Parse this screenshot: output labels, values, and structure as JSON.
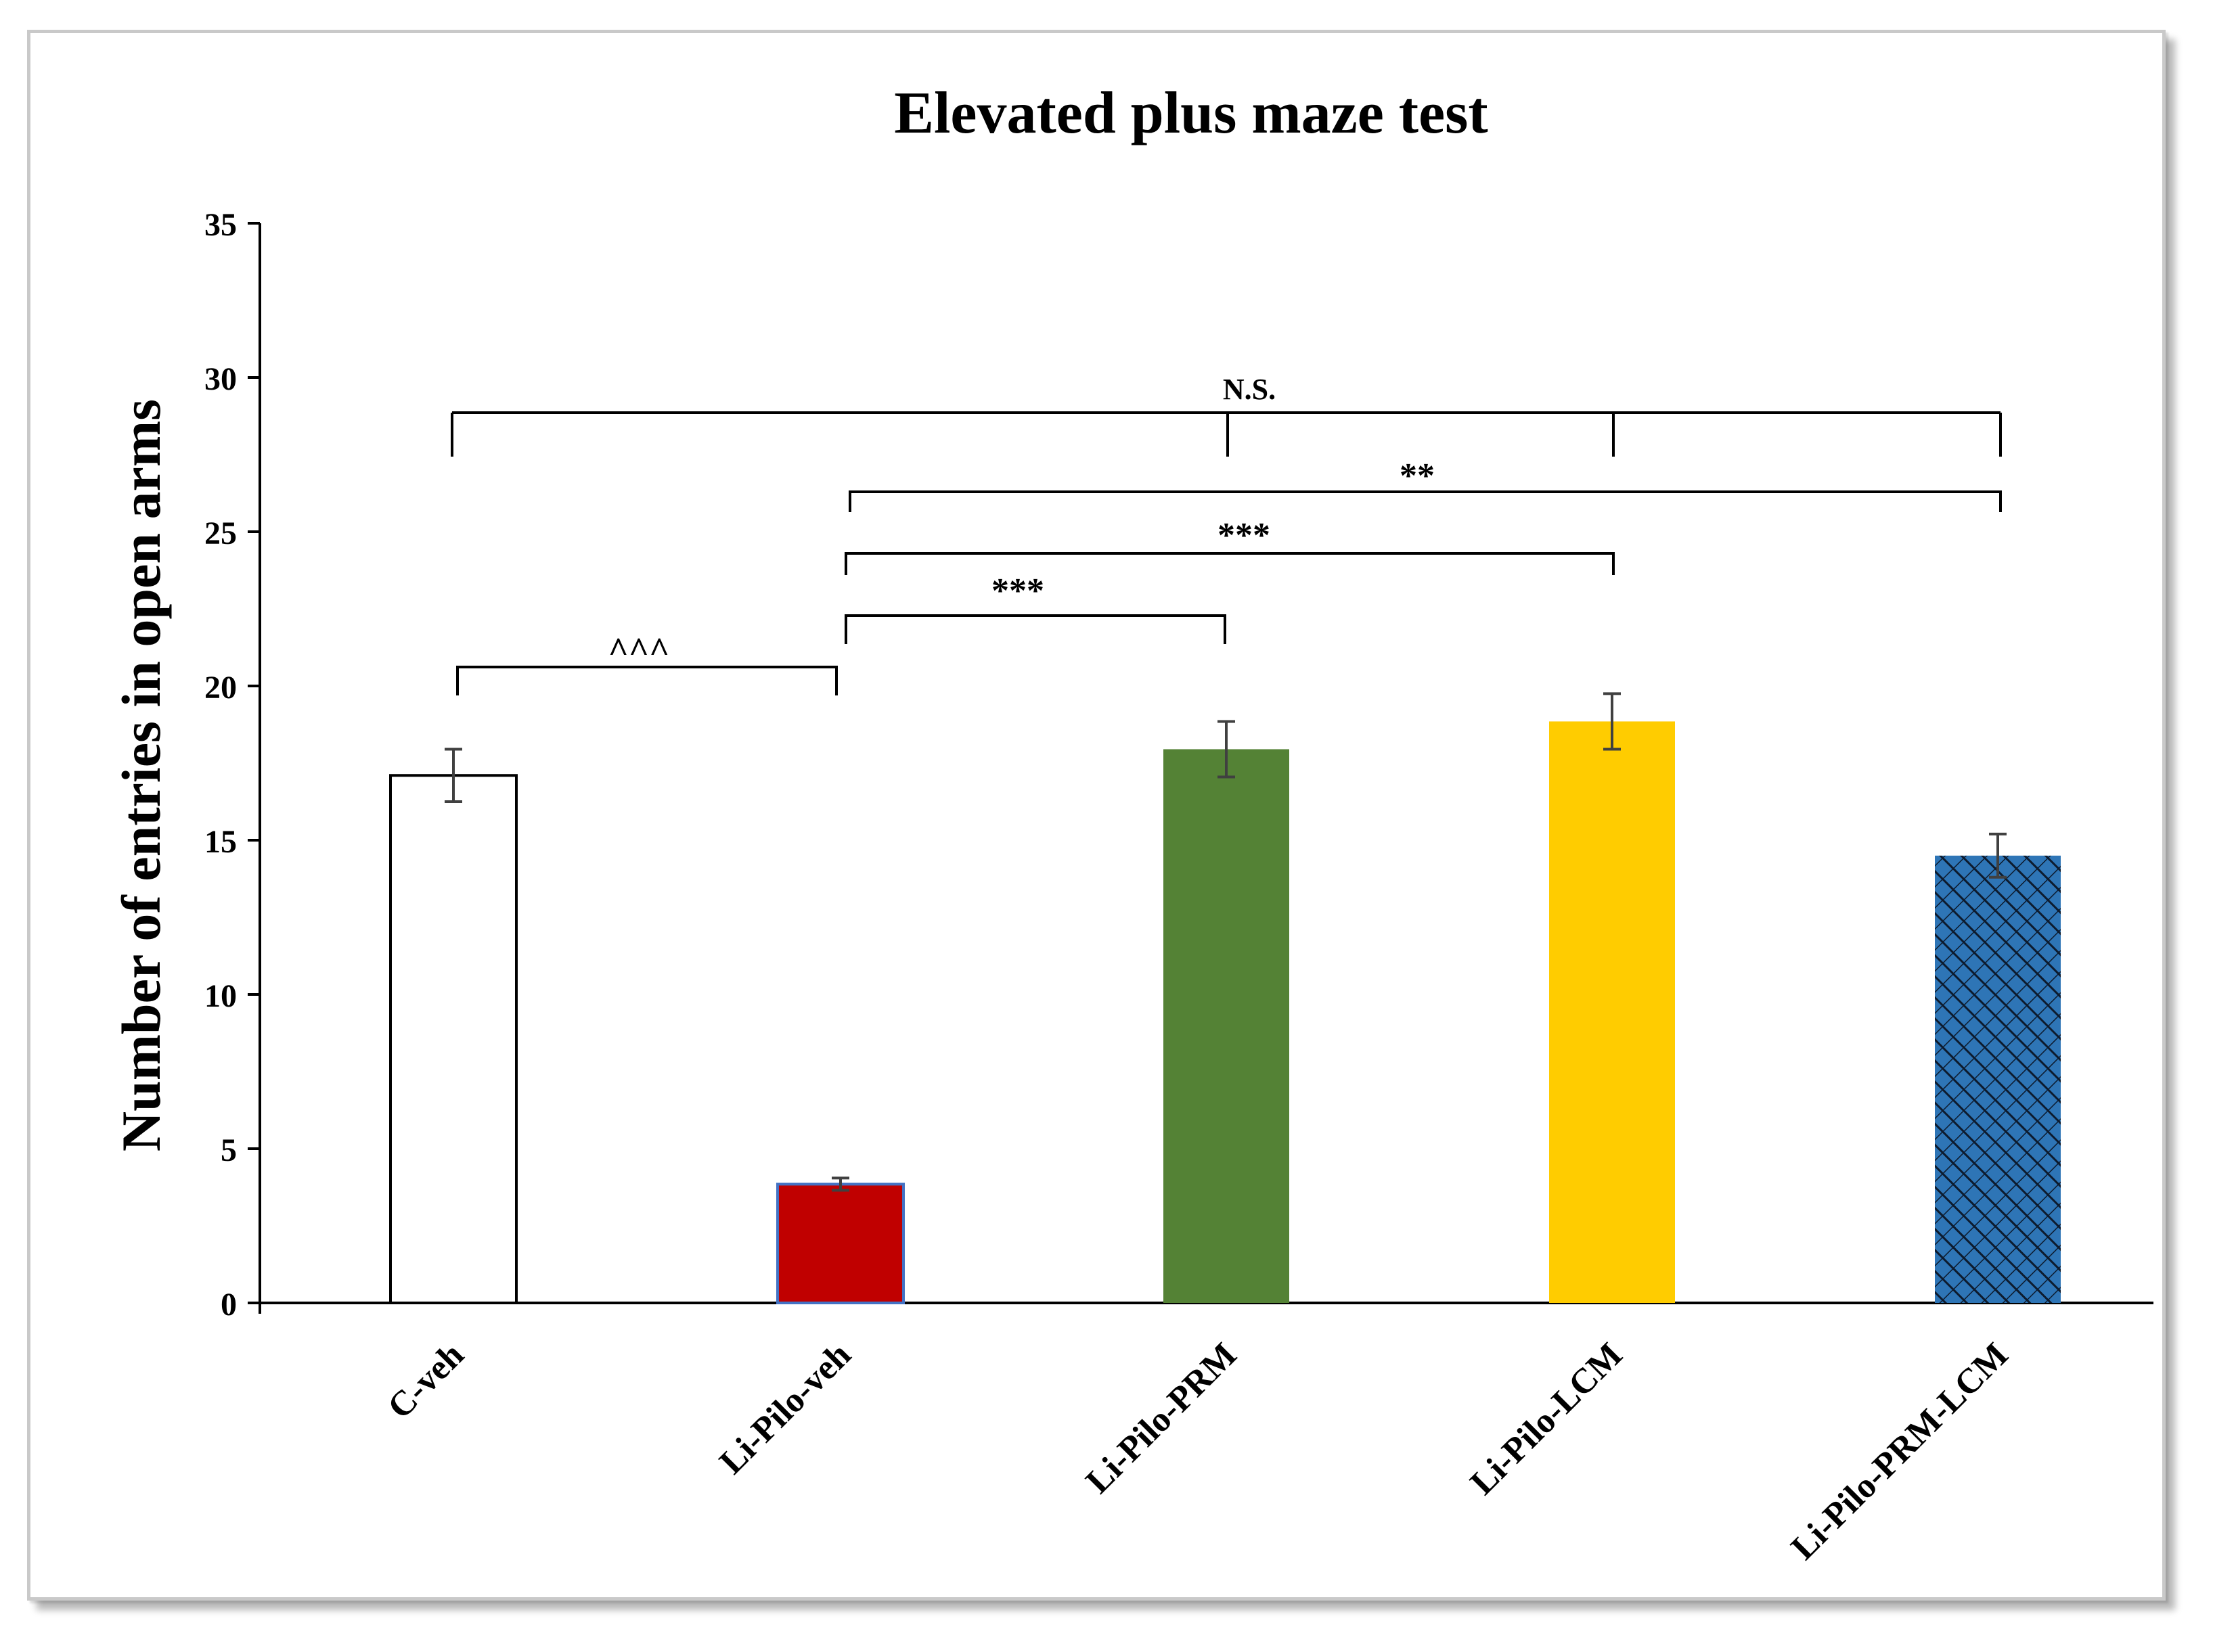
{
  "chart_data": {
    "type": "bar",
    "title": "Elevated plus maze test",
    "xlabel": "",
    "ylabel": "Number of entries in open arms",
    "ylim": [
      0,
      35
    ],
    "yticks": [
      0,
      5,
      10,
      15,
      20,
      25,
      30,
      35
    ],
    "categories": [
      "C-veh",
      "Li-Pilo-veh",
      "Li-Pilo-PRM",
      "Li-Pilo-LCM",
      "Li-Pilo-PRM-LCM"
    ],
    "values": [
      17.1,
      3.85,
      17.95,
      18.85,
      14.5
    ],
    "errors": [
      0.85,
      0.2,
      0.9,
      0.9,
      0.7
    ],
    "bar_styles": [
      {
        "fill": "#ffffff",
        "stroke": "#000000",
        "pattern": "none"
      },
      {
        "fill": "#c00000",
        "stroke": "#4472c4",
        "pattern": "none"
      },
      {
        "fill": "#548235",
        "stroke": "none",
        "pattern": "none"
      },
      {
        "fill": "#ffcc00",
        "stroke": "none",
        "pattern": "none"
      },
      {
        "fill": "#2e75b6",
        "stroke": "none",
        "pattern": "diagonal-crosshatch"
      }
    ],
    "significance": [
      {
        "label": "^^^",
        "pairs": [
          [
            0,
            1
          ]
        ]
      },
      {
        "label": "***",
        "pairs": [
          [
            1,
            2
          ]
        ]
      },
      {
        "label": "***",
        "pairs": [
          [
            1,
            3
          ]
        ]
      },
      {
        "label": "**",
        "pairs": [
          [
            1,
            4
          ]
        ]
      },
      {
        "label": "N.S.",
        "pairs": [
          [
            0,
            2
          ],
          [
            0,
            3
          ],
          [
            0,
            4
          ]
        ]
      }
    ],
    "grid": false,
    "legend": "none"
  }
}
